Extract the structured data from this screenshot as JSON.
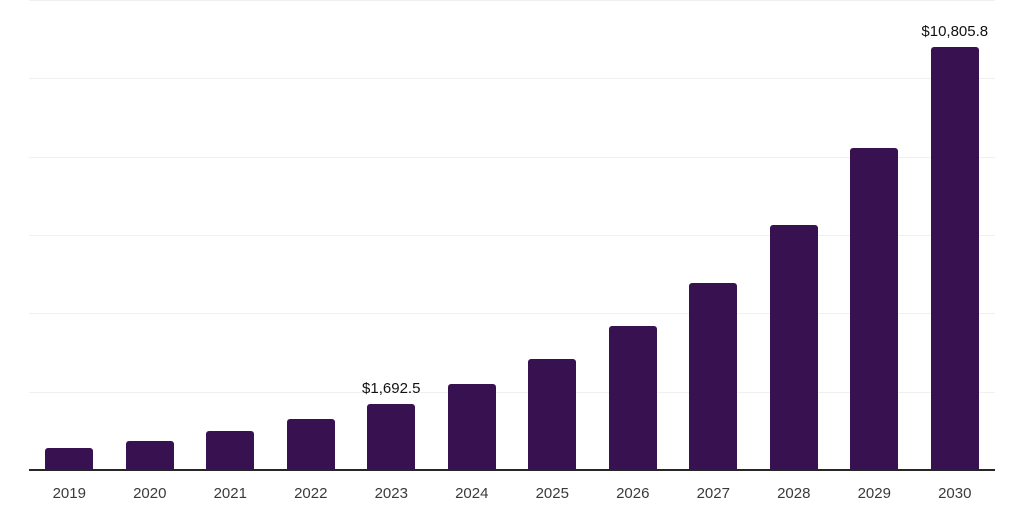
{
  "chart_data": {
    "type": "bar",
    "title": "",
    "xlabel": "",
    "ylabel": "",
    "categories": [
      "2019",
      "2020",
      "2021",
      "2022",
      "2023",
      "2024",
      "2025",
      "2026",
      "2027",
      "2028",
      "2029",
      "2030"
    ],
    "values": [
      570,
      750,
      990,
      1315,
      1692.5,
      2190,
      2830,
      3670,
      4770,
      6260,
      8230,
      10805.8
    ],
    "data_labels": {
      "2023": "$1,692.5",
      "2030": "$10,805.8"
    },
    "ylim": [
      0,
      12000
    ],
    "gridline_step": 2000,
    "grid": true,
    "y_tick_labels_visible": false,
    "legend_visible": false
  },
  "colors": {
    "bar": "#381250",
    "gridline": "#f0f0f0",
    "axis_line": "#262626",
    "tick_label": "#3a3a3a",
    "data_label": "#111111",
    "background": "#ffffff"
  }
}
